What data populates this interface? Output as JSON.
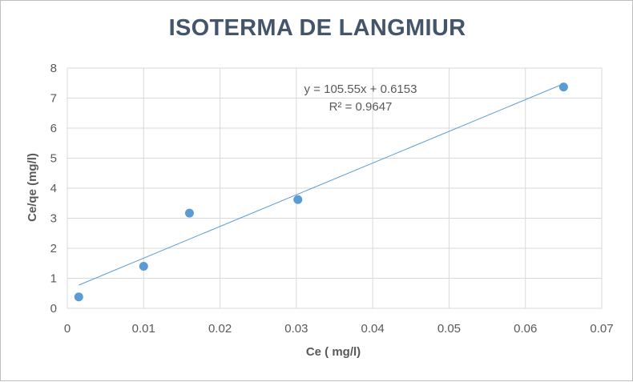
{
  "chart_data": {
    "type": "scatter",
    "title": "ISOTERMA DE LANGMIUR",
    "xlabel": "Ce ( mg/l)",
    "ylabel": "Ce/qe (mg/l)",
    "xlim": [
      0,
      0.07
    ],
    "ylim": [
      0,
      8
    ],
    "x_ticks": [
      "0",
      "0.01",
      "0.02",
      "0.03",
      "0.04",
      "0.05",
      "0.06",
      "0.07"
    ],
    "y_ticks": [
      "0",
      "1",
      "2",
      "3",
      "4",
      "5",
      "6",
      "7",
      "8"
    ],
    "grid": true,
    "series": [
      {
        "points": [
          {
            "x": 0.0015,
            "y": 0.38
          },
          {
            "x": 0.01,
            "y": 1.4
          },
          {
            "x": 0.016,
            "y": 3.17
          },
          {
            "x": 0.0302,
            "y": 3.62
          },
          {
            "x": 0.065,
            "y": 7.37
          }
        ],
        "color": "#5b9bd5"
      }
    ],
    "trendline": {
      "slope": 105.55,
      "intercept": 0.6153,
      "x_range": [
        0.0015,
        0.065
      ],
      "equation": "y = 105.55x + 0.6153",
      "r_squared": "R² = 0.9647",
      "color": "#5b9bd5"
    }
  }
}
